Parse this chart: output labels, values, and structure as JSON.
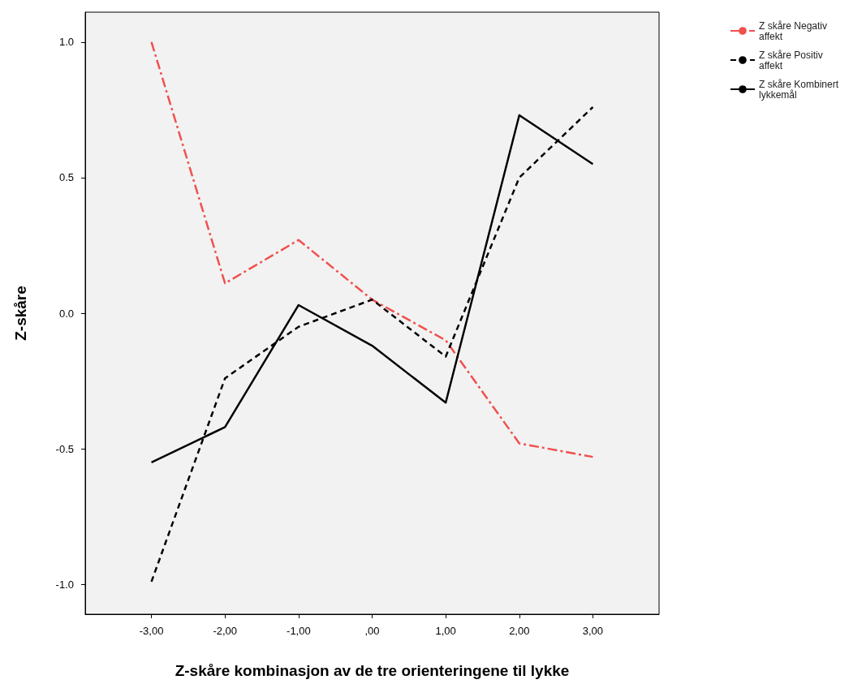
{
  "chart_data": {
    "type": "line",
    "xlabel": "Z-skåre kombinasjon av de tre orienteringene til lykke",
    "ylabel": "Z-skåre",
    "x": [
      -3,
      -2,
      -1,
      0,
      1,
      2,
      3
    ],
    "xlim": [
      -3.9,
      3.9
    ],
    "xticks": [
      {
        "value": -3,
        "label": "-3,00"
      },
      {
        "value": -2,
        "label": "-2,00"
      },
      {
        "value": -1,
        "label": "-1,00"
      },
      {
        "value": 0,
        "label": ",00"
      },
      {
        "value": 1,
        "label": "1,00"
      },
      {
        "value": 2,
        "label": "2,00"
      },
      {
        "value": 3,
        "label": "3,00"
      }
    ],
    "ylim": [
      -1.11,
      1.11
    ],
    "yticks": [
      {
        "value": -1,
        "label": "-1.0"
      },
      {
        "value": -0.5,
        "label": "-0.5"
      },
      {
        "value": 0,
        "label": "0.0"
      },
      {
        "value": 0.5,
        "label": "0.5"
      },
      {
        "value": 1,
        "label": "1.0"
      }
    ],
    "series": [
      {
        "name": "Z skåre Negativ affekt",
        "color": "#f0504d",
        "line_style": "dashdot",
        "values": [
          1.0,
          0.11,
          0.27,
          0.05,
          -0.1,
          -0.48,
          -0.53
        ]
      },
      {
        "name": "Z skåre Positiv affekt",
        "color": "#000000",
        "line_style": "dashed",
        "values": [
          -0.99,
          -0.24,
          -0.05,
          0.05,
          -0.16,
          0.5,
          0.76
        ]
      },
      {
        "name": "Z skåre Kombinert lykkemål",
        "color": "#000000",
        "line_style": "solid",
        "values": [
          -0.55,
          -0.42,
          0.03,
          -0.12,
          -0.33,
          0.73,
          0.55
        ]
      }
    ],
    "grid": false,
    "legend": "top right",
    "marker": "none"
  }
}
